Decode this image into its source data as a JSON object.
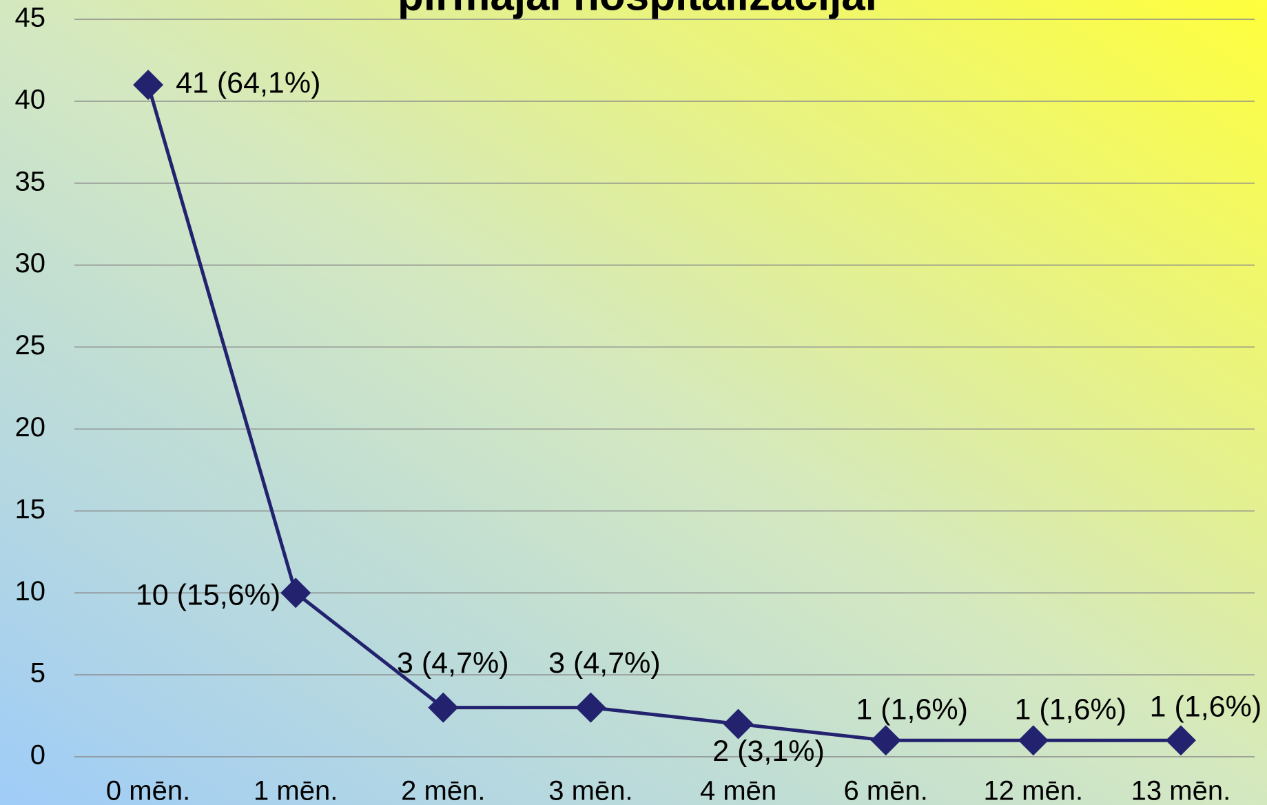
{
  "chart_data": {
    "type": "line",
    "title": "pirmajai hospitalizācijai",
    "categories": [
      "0 mēn.",
      "1 mēn.",
      "2 mēn.",
      "3 mēn.",
      "4 mēn",
      "6 mēn.",
      "12 mēn.",
      "13 mēn."
    ],
    "series": [
      {
        "name": null,
        "color": "#22226e",
        "values": [
          41,
          10,
          3,
          3,
          2,
          1,
          1,
          1
        ],
        "value_labels": [
          "41 (64,1%)",
          "10 (15,6%)",
          "3 (4,7%)",
          "3 (4,7%)",
          "2 (3,1%)",
          "1 (1,6%)",
          "1 (1,6%)",
          "1 (1,6%)"
        ]
      }
    ],
    "ylim": [
      0,
      45
    ],
    "yticks": [
      0,
      5,
      10,
      15,
      20,
      25,
      30,
      35,
      40,
      45
    ],
    "grid": true,
    "legend": false
  }
}
